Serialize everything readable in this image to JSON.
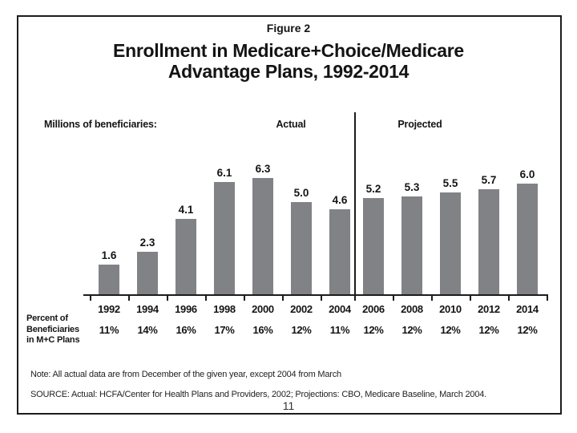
{
  "figure": {
    "label": "Figure 2",
    "title_line1": "Enrollment in Medicare+Choice/Medicare",
    "title_line2": "Advantage Plans, 1992-2014"
  },
  "chart_data": {
    "type": "bar",
    "title": "Enrollment in Medicare+Choice/Medicare Advantage Plans, 1992-2014",
    "unit_label": "Millions of beneficiaries:",
    "xlabel": "",
    "ylabel": "Millions of beneficiaries",
    "ylim": [
      0,
      7
    ],
    "grid": false,
    "bar_color": "#808285",
    "categories": [
      "1992",
      "1994",
      "1996",
      "1998",
      "2000",
      "2002",
      "2004",
      "2006",
      "2008",
      "2010",
      "2012",
      "2014"
    ],
    "values": [
      1.6,
      2.3,
      4.1,
      6.1,
      6.3,
      5.0,
      4.6,
      5.2,
      5.3,
      5.5,
      5.7,
      6.0
    ],
    "value_labels": [
      "1.6",
      "2.3",
      "4.1",
      "6.1",
      "6.3",
      "5.0",
      "4.6",
      "5.2",
      "5.3",
      "5.5",
      "5.7",
      "6.0"
    ],
    "sections": [
      {
        "label": "Actual",
        "categories": [
          "1992",
          "1994",
          "1996",
          "1998",
          "2000",
          "2002",
          "2004"
        ]
      },
      {
        "label": "Projected",
        "categories": [
          "2006",
          "2008",
          "2010",
          "2012",
          "2014"
        ]
      }
    ],
    "percent_row": {
      "label_lines": [
        "Percent of",
        "Beneficiaries",
        "in M+C Plans"
      ],
      "values": [
        "11%",
        "14%",
        "16%",
        "17%",
        "16%",
        "12%",
        "11%",
        "12%",
        "12%",
        "12%",
        "12%",
        "12%"
      ]
    }
  },
  "footer": {
    "note": "Note: All actual data are from December of the given year, except 2004 from March",
    "source": "SOURCE: Actual: HCFA/Center for Health Plans and Providers, 2002; Projections: CBO, Medicare Baseline, March 2004.",
    "page_number": "11"
  }
}
